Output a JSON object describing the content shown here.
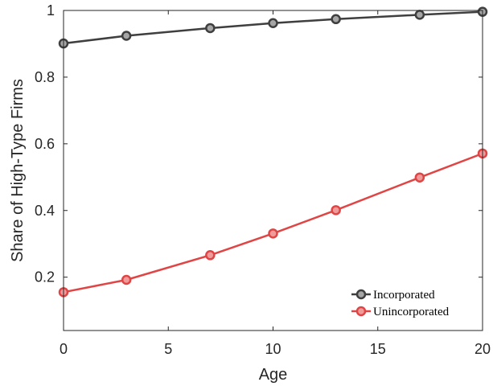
{
  "chart_data": {
    "type": "line",
    "title": "",
    "xlabel": "Age",
    "ylabel": "Share of High-Type Firms",
    "xlim": [
      0,
      20
    ],
    "ylim": [
      0.04,
      1
    ],
    "xticks": [
      0,
      5,
      10,
      15,
      20
    ],
    "yticks": [
      0.2,
      0.4,
      0.6,
      0.8,
      1
    ],
    "ytick_labels": [
      "0.2",
      "0.4",
      "0.6",
      "0.8",
      "1"
    ],
    "grid": false,
    "legend_position": "bottom-right",
    "series": [
      {
        "name": "Incorporated",
        "color": "#3f3f3f",
        "marker_fill": "#a6a6a6",
        "x": [
          0,
          3,
          7,
          10,
          13,
          17,
          20
        ],
        "y": [
          0.901,
          0.924,
          0.947,
          0.962,
          0.974,
          0.987,
          0.996
        ]
      },
      {
        "name": "Unincorporated",
        "color": "#e04545",
        "marker_fill": "#f09a9a",
        "x": [
          0,
          3,
          7,
          10,
          13,
          17,
          20
        ],
        "y": [
          0.155,
          0.192,
          0.266,
          0.331,
          0.401,
          0.499,
          0.571
        ]
      }
    ]
  }
}
